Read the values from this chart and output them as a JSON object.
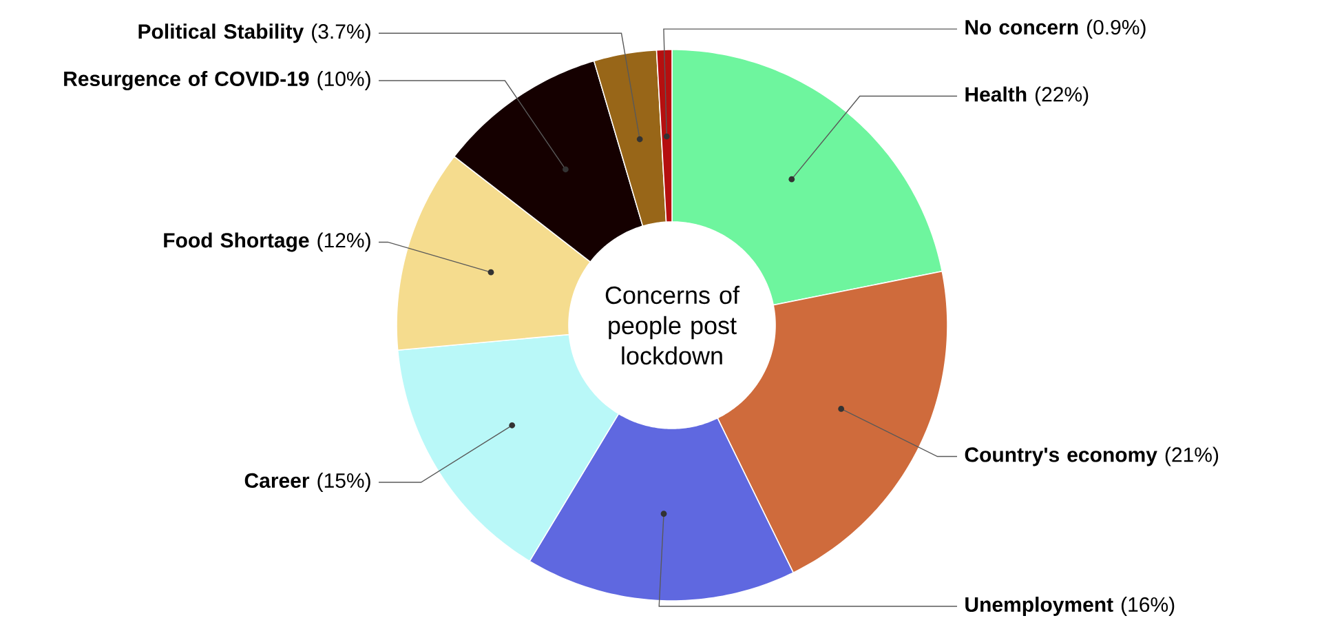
{
  "chart_data": {
    "type": "donut",
    "title": "Concerns of people post lockdown",
    "categories": [
      "Health",
      "Country's economy",
      "Unemployment",
      "Career",
      "Food Shortage",
      "Resurgence of COVID-19",
      "Political Stability",
      "No concern"
    ],
    "values": [
      22,
      21,
      16,
      15,
      12,
      10,
      3.7,
      0.9
    ],
    "value_labels": [
      "(22%)",
      "(21%)",
      "(16%)",
      "(15%)",
      "(12%)",
      "(10%)",
      "(3.7%)",
      "(0.9%)"
    ],
    "colors": [
      "#6ef59e",
      "#cf6b3c",
      "#5f68e0",
      "#b9f8f8",
      "#f5dc8e",
      "#150000",
      "#986618",
      "#b50f0f"
    ]
  }
}
